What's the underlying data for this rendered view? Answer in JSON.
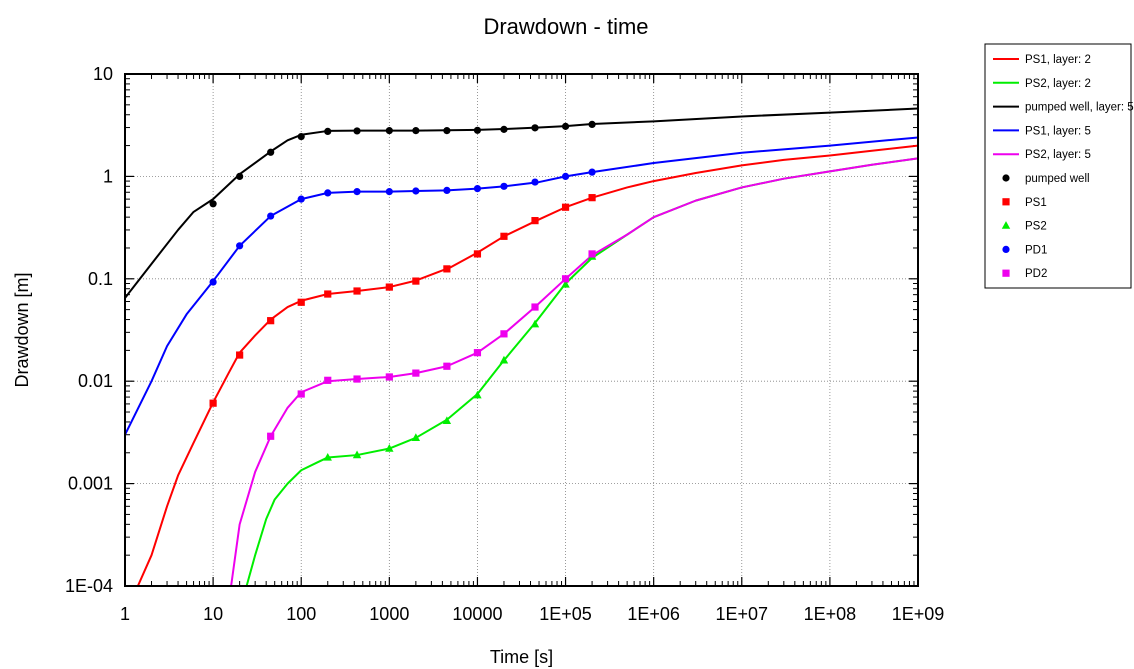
{
  "chart_data": {
    "type": "line",
    "title": "Drawdown - time",
    "xlabel": "Time [s]",
    "ylabel": "Drawdown [m]",
    "xscale": "log",
    "yscale": "log",
    "xlim": [
      1,
      1000000000
    ],
    "ylim": [
      0.0001,
      10
    ],
    "grid": true,
    "legend_position": "right, outside",
    "x_tick_labels": [
      "1",
      "10",
      "100",
      "1000",
      "10000",
      "1E+05",
      "1E+06",
      "1E+07",
      "1E+08",
      "1E+09"
    ],
    "y_tick_labels": [
      "1E-04",
      "0.001",
      "0.01",
      "0.1",
      "1",
      "10"
    ],
    "series": [
      {
        "name": "PS1, layer: 2",
        "kind": "line",
        "color": "#ff0000",
        "x": [
          1.4,
          2,
          3,
          4,
          6,
          10,
          15,
          20,
          30,
          45,
          70,
          100,
          200,
          430,
          1000,
          2000,
          5000,
          10000,
          20000,
          50000,
          100000,
          200000,
          500000,
          1000000,
          3000000,
          10000000,
          30000000,
          100000000,
          300000000,
          1000000000
        ],
        "y": [
          0.0001,
          0.0002,
          0.0006,
          0.0012,
          0.0025,
          0.0062,
          0.012,
          0.019,
          0.028,
          0.04,
          0.053,
          0.061,
          0.071,
          0.076,
          0.083,
          0.096,
          0.13,
          0.18,
          0.26,
          0.38,
          0.5,
          0.62,
          0.78,
          0.9,
          1.08,
          1.28,
          1.45,
          1.6,
          1.78,
          2.0
        ]
      },
      {
        "name": "PS2, layer: 2",
        "kind": "line",
        "color": "#00ee00",
        "x": [
          24,
          30,
          40,
          50,
          70,
          100,
          150,
          200,
          430,
          1000,
          2000,
          4500,
          10000,
          20000,
          45000,
          100000,
          200000,
          500000,
          1000000,
          3000000,
          10000000,
          30000000,
          100000000,
          300000000,
          1000000000
        ],
        "y": [
          0.0001,
          0.0002,
          0.00045,
          0.0007,
          0.001,
          0.00135,
          0.0016,
          0.0018,
          0.0019,
          0.0022,
          0.0028,
          0.0042,
          0.0075,
          0.016,
          0.037,
          0.09,
          0.16,
          0.27,
          0.4,
          0.58,
          0.78,
          0.95,
          1.12,
          1.3,
          1.5
        ]
      },
      {
        "name": "pumped well, layer: 5",
        "kind": "line",
        "color": "#000000",
        "x": [
          1,
          2,
          4,
          6,
          10,
          20,
          45,
          70,
          100,
          200,
          430,
          1000,
          2000,
          4500,
          10000,
          20000,
          50000,
          100000,
          200000,
          1000000,
          10000000,
          100000000,
          1000000000
        ],
        "y": [
          0.065,
          0.14,
          0.3,
          0.45,
          0.6,
          1.05,
          1.75,
          2.25,
          2.55,
          2.78,
          2.8,
          2.8,
          2.8,
          2.82,
          2.85,
          2.9,
          3.0,
          3.1,
          3.25,
          3.45,
          3.85,
          4.2,
          4.6
        ]
      },
      {
        "name": "PS1, layer: 5",
        "kind": "line",
        "color": "#0000ff",
        "x": [
          1,
          2,
          3,
          5,
          10,
          20,
          45,
          100,
          200,
          430,
          1000,
          2000,
          4500,
          10000,
          20000,
          50000,
          100000,
          200000,
          1000000,
          10000000,
          100000000,
          1000000000
        ],
        "y": [
          0.003,
          0.01,
          0.022,
          0.045,
          0.095,
          0.21,
          0.41,
          0.6,
          0.69,
          0.71,
          0.71,
          0.72,
          0.73,
          0.76,
          0.8,
          0.88,
          1.0,
          1.1,
          1.35,
          1.7,
          2.0,
          2.4
        ]
      },
      {
        "name": "PS2, layer: 5",
        "kind": "line",
        "color": "#ee00ee",
        "x": [
          16,
          20,
          30,
          45,
          70,
          100,
          200,
          430,
          1000,
          2000,
          4500,
          10000,
          20000,
          45000,
          100000,
          200000,
          500000,
          1000000,
          3000000,
          10000000,
          30000000,
          100000000,
          300000000,
          1000000000
        ],
        "y": [
          0.0001,
          0.0004,
          0.0013,
          0.0029,
          0.0055,
          0.0078,
          0.01,
          0.0105,
          0.011,
          0.012,
          0.014,
          0.019,
          0.029,
          0.053,
          0.1,
          0.17,
          0.27,
          0.4,
          0.58,
          0.78,
          0.95,
          1.12,
          1.3,
          1.5
        ]
      },
      {
        "name": "pumped well",
        "kind": "marker",
        "shape": "circle",
        "color": "#000000",
        "x": [
          10,
          20,
          45,
          100,
          200,
          430,
          1000,
          2000,
          4500,
          10000,
          20000,
          45000,
          100000,
          200000
        ],
        "y": [
          0.54,
          1.0,
          1.72,
          2.45,
          2.75,
          2.78,
          2.8,
          2.8,
          2.8,
          2.82,
          2.88,
          2.98,
          3.08,
          3.22
        ]
      },
      {
        "name": "PS1",
        "kind": "marker",
        "shape": "square",
        "color": "#ff0000",
        "x": [
          10,
          20,
          45,
          100,
          200,
          430,
          1000,
          2000,
          4500,
          10000,
          20000,
          45000,
          100000,
          200000
        ],
        "y": [
          0.0061,
          0.018,
          0.039,
          0.059,
          0.071,
          0.076,
          0.083,
          0.095,
          0.125,
          0.175,
          0.26,
          0.37,
          0.5,
          0.62
        ]
      },
      {
        "name": "PS2",
        "kind": "marker",
        "shape": "triangle",
        "color": "#00ee00",
        "x": [
          200,
          430,
          1000,
          2000,
          4500,
          10000,
          20000,
          45000,
          100000,
          200000
        ],
        "y": [
          0.0018,
          0.0019,
          0.0022,
          0.0028,
          0.0041,
          0.0073,
          0.016,
          0.036,
          0.088,
          0.165
        ]
      },
      {
        "name": "PD1",
        "kind": "marker",
        "shape": "circle",
        "color": "#0000ff",
        "x": [
          10,
          20,
          45,
          100,
          200,
          430,
          1000,
          2000,
          4500,
          10000,
          20000,
          45000,
          100000,
          200000
        ],
        "y": [
          0.093,
          0.21,
          0.41,
          0.6,
          0.69,
          0.71,
          0.71,
          0.72,
          0.73,
          0.76,
          0.8,
          0.88,
          1.0,
          1.1
        ]
      },
      {
        "name": "PD2",
        "kind": "marker",
        "shape": "square",
        "color": "#ee00ee",
        "x": [
          45,
          100,
          200,
          430,
          1000,
          2000,
          4500,
          10000,
          20000,
          45000,
          100000,
          200000
        ],
        "y": [
          0.0029,
          0.0075,
          0.0102,
          0.0105,
          0.011,
          0.012,
          0.014,
          0.019,
          0.029,
          0.053,
          0.1,
          0.175
        ]
      }
    ]
  }
}
